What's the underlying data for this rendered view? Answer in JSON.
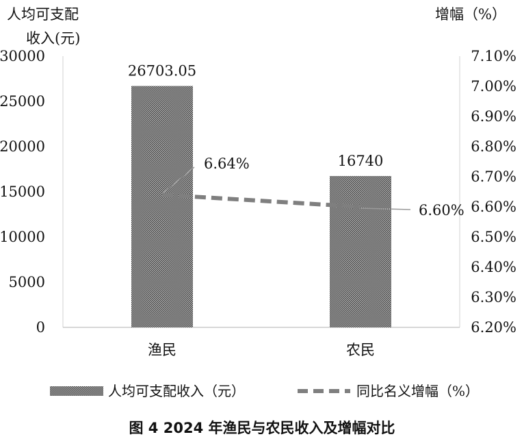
{
  "chart_data": {
    "type": "bar",
    "title": "图 4 2024 年渔民与农民收入及增幅对比",
    "categories": [
      "渔民",
      "农民"
    ],
    "y_left": {
      "label_line1": "人均可支配",
      "label_line2": "收入(元)",
      "lim": [
        0,
        30000
      ],
      "ticks": [
        "0",
        "5000",
        "10000",
        "15000",
        "20000",
        "25000",
        "30000"
      ]
    },
    "y_right": {
      "label": "增幅（%）",
      "lim": [
        6.2,
        7.1
      ],
      "ticks": [
        "6.20%",
        "6.30%",
        "6.40%",
        "6.50%",
        "6.60%",
        "6.70%",
        "6.80%",
        "6.90%",
        "7.00%",
        "7.10%"
      ]
    },
    "series": [
      {
        "name": "人均可支配收入（元）",
        "type": "bar",
        "axis": "left",
        "values": [
          26703.05,
          16740
        ],
        "labels": [
          "26703.05",
          "16740"
        ],
        "pattern": "checker"
      },
      {
        "name": "同比名义增幅（%）",
        "type": "line",
        "axis": "right",
        "values": [
          6.64,
          6.6
        ],
        "labels": [
          "6.64%",
          "6.60%"
        ],
        "style": "dashed",
        "color": "#7f7f7f"
      }
    ],
    "legend_position": "bottom",
    "grid": false
  }
}
